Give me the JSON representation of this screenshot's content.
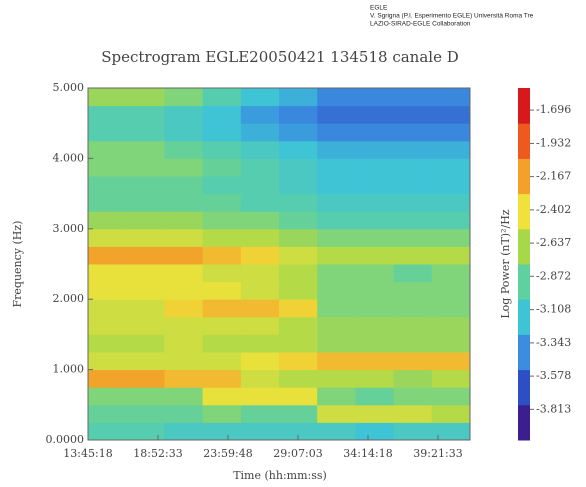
{
  "header": {
    "lines": [
      "EGLE",
      "V. Sgrigna (P.I. Esperimento EGLE) Università Roma Tre",
      "LAZIO-SIRAD-EGLE Collaboration"
    ]
  },
  "chart_data": {
    "type": "heatmap",
    "title": "Spectrogram EGLE20050421 134518 canale D",
    "x_label": "Time (hh:mm:ss)",
    "y_label": "Frequency (Hz)",
    "xlim": [
      49518,
      150118
    ],
    "xticks": [
      {
        "value": 49518,
        "label": "13:45:18"
      },
      {
        "value": 67953,
        "label": "18:52:33"
      },
      {
        "value": 86388,
        "label": "23:59:48"
      },
      {
        "value": 104823,
        "label": "29:07:03"
      },
      {
        "value": 123258,
        "label": "34:14:18"
      },
      {
        "value": 141693,
        "label": "39:21:33"
      }
    ],
    "ylim": [
      0,
      5000
    ],
    "yticks": [
      {
        "value": 0,
        "label": "0.0000"
      },
      {
        "value": 1000,
        "label": "1.000"
      },
      {
        "value": 2000,
        "label": "2.000"
      },
      {
        "value": 3000,
        "label": "3.000"
      },
      {
        "value": 4000,
        "label": "4.000"
      },
      {
        "value": 5000,
        "label": "5.000"
      }
    ],
    "colorbar_label": "Log Power (nT)²/Hz",
    "zlim": [
      -4.03,
      -1.54
    ],
    "zticks": [
      -1.696,
      -1.932,
      -2.167,
      -2.402,
      -2.637,
      -2.872,
      -3.108,
      -3.343,
      -3.578,
      -3.813
    ],
    "colorscale": [
      "#3b1f8f",
      "#2e4fc4",
      "#3a8de0",
      "#3fc4d6",
      "#5fd0a0",
      "#a8d84a",
      "#f0e23a",
      "#f2a12a",
      "#ec5a1e",
      "#d7191c"
    ],
    "z": [
      [
        -3.0,
        -3.0,
        -3.1,
        -3.1,
        -3.1,
        -3.1,
        -3.1,
        -3.2,
        -3.1,
        -3.1
      ],
      [
        -2.9,
        -2.9,
        -2.9,
        -2.8,
        -2.9,
        -2.9,
        -2.5,
        -2.5,
        -2.5,
        -2.6
      ],
      [
        -2.8,
        -2.8,
        -2.8,
        -2.4,
        -2.4,
        -2.4,
        -2.8,
        -2.9,
        -2.8,
        -2.8
      ],
      [
        -2.1,
        -2.1,
        -2.2,
        -2.2,
        -2.5,
        -2.6,
        -2.6,
        -2.6,
        -2.7,
        -2.6
      ],
      [
        -2.5,
        -2.5,
        -2.5,
        -2.5,
        -2.4,
        -2.3,
        -2.2,
        -2.2,
        -2.2,
        -2.2
      ],
      [
        -2.6,
        -2.6,
        -2.5,
        -2.6,
        -2.6,
        -2.6,
        -2.7,
        -2.7,
        -2.7,
        -2.7
      ],
      [
        -2.5,
        -2.5,
        -2.5,
        -2.5,
        -2.5,
        -2.6,
        -2.7,
        -2.7,
        -2.7,
        -2.7
      ],
      [
        -2.5,
        -2.5,
        -2.3,
        -2.2,
        -2.2,
        -2.3,
        -2.8,
        -2.8,
        -2.8,
        -2.8
      ],
      [
        -2.4,
        -2.4,
        -2.4,
        -2.4,
        -2.5,
        -2.6,
        -2.8,
        -2.8,
        -2.8,
        -2.8
      ],
      [
        -2.4,
        -2.4,
        -2.4,
        -2.5,
        -2.5,
        -2.6,
        -2.8,
        -2.8,
        -2.9,
        -2.8
      ],
      [
        -2.1,
        -2.1,
        -2.1,
        -2.2,
        -2.3,
        -2.5,
        -2.6,
        -2.6,
        -2.6,
        -2.6
      ],
      [
        -2.5,
        -2.5,
        -2.5,
        -2.6,
        -2.6,
        -2.7,
        -2.8,
        -2.8,
        -2.8,
        -2.8
      ],
      [
        -2.7,
        -2.7,
        -2.7,
        -2.8,
        -2.8,
        -2.9,
        -3.0,
        -3.0,
        -3.0,
        -3.0
      ],
      [
        -2.9,
        -2.9,
        -2.9,
        -2.9,
        -3.0,
        -3.0,
        -3.1,
        -3.1,
        -3.1,
        -3.1
      ],
      [
        -2.9,
        -2.9,
        -2.9,
        -3.0,
        -3.0,
        -3.1,
        -3.2,
        -3.2,
        -3.2,
        -3.2
      ],
      [
        -2.8,
        -2.8,
        -2.8,
        -2.9,
        -3.0,
        -3.1,
        -3.2,
        -3.2,
        -3.2,
        -3.2
      ],
      [
        -2.8,
        -2.8,
        -2.9,
        -3.0,
        -3.1,
        -3.2,
        -3.3,
        -3.3,
        -3.3,
        -3.3
      ],
      [
        -3.0,
        -3.0,
        -3.1,
        -3.2,
        -3.3,
        -3.4,
        -3.5,
        -3.5,
        -3.5,
        -3.5
      ],
      [
        -3.0,
        -3.0,
        -3.1,
        -3.2,
        -3.4,
        -3.5,
        -3.6,
        -3.6,
        -3.6,
        -3.6
      ],
      [
        -2.7,
        -2.7,
        -2.8,
        -3.0,
        -3.2,
        -3.3,
        -3.5,
        -3.5,
        -3.5,
        -3.5
      ]
    ]
  }
}
